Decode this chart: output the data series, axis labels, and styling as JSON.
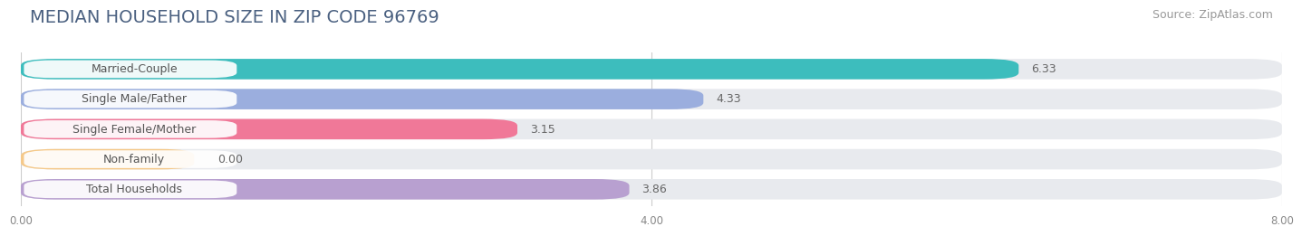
{
  "title": "MEDIAN HOUSEHOLD SIZE IN ZIP CODE 96769",
  "source": "Source: ZipAtlas.com",
  "categories": [
    "Married-Couple",
    "Single Male/Father",
    "Single Female/Mother",
    "Non-family",
    "Total Households"
  ],
  "values": [
    6.33,
    4.33,
    3.15,
    0.0,
    3.86
  ],
  "bar_colors": [
    "#3dbdbd",
    "#9baede",
    "#f07898",
    "#f5c98a",
    "#b8a0d0"
  ],
  "xlim": [
    0,
    8.0
  ],
  "xticks": [
    0.0,
    4.0,
    8.0
  ],
  "xtick_labels": [
    "0.00",
    "4.00",
    "8.00"
  ],
  "value_labels": [
    "6.33",
    "4.33",
    "3.15",
    "0.00",
    "3.86"
  ],
  "background_color": "#ffffff",
  "title_color": "#4a6080",
  "source_color": "#999999",
  "label_color": "#555555",
  "value_color": "#666666",
  "title_fontsize": 14,
  "source_fontsize": 9,
  "label_fontsize": 9,
  "value_fontsize": 9,
  "bar_height": 0.68,
  "bar_gap": 0.32
}
